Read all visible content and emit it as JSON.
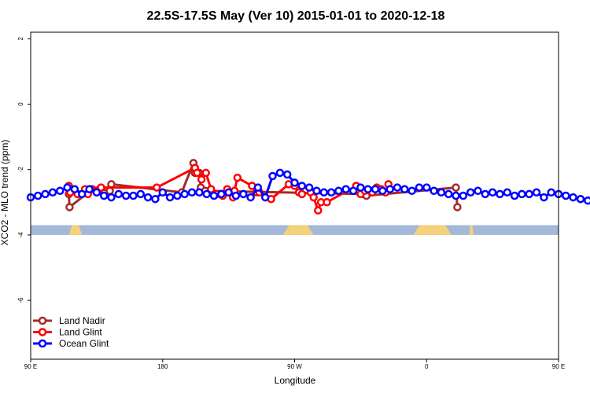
{
  "chart_data": {
    "type": "line",
    "title": "22.5S-17.5S May (Ver 10)   2015-01-01 to 2020-12-18",
    "xlabel": "Longitude",
    "ylabel": "XCO2 - MLO trend (ppm)",
    "xlim": [
      90,
      450
    ],
    "ylim": [
      -7.8,
      2.2
    ],
    "x_ticks": [
      {
        "value": 90,
        "label": "90 E"
      },
      {
        "value": 180,
        "label": "180"
      },
      {
        "value": 270,
        "label": "90 W"
      },
      {
        "value": 360,
        "label": "0"
      },
      {
        "value": 450,
        "label": "90 E"
      },
      {
        "value": 540,
        "label": "180"
      }
    ],
    "y_ticks": [
      {
        "value": 2,
        "label": "2"
      },
      {
        "value": 0,
        "label": "0"
      },
      {
        "value": -2,
        "label": "-2"
      },
      {
        "value": -4,
        "label": "-4"
      },
      {
        "value": -6,
        "label": "-6"
      }
    ],
    "legend_position": "bottom-left",
    "land_band": {
      "ymin": -4.0,
      "ymax": -3.7,
      "ocean_color": "#a4b9d9",
      "land_color": "#f4d27a",
      "land_ranges": [
        [
          116,
          125
        ],
        [
          262,
          283
        ],
        [
          351,
          377
        ],
        [
          389,
          392
        ],
        [
          474,
          492
        ]
      ]
    },
    "series": [
      {
        "name": "Land Nadir",
        "color": "#a52a2a",
        "x": [
          116,
          116.5,
          132,
          137,
          144,
          145,
          193,
          201,
          201.5,
          202,
          205,
          206,
          209,
          317,
          319,
          380,
          381
        ],
        "y": [
          -2.75,
          -3.15,
          -2.6,
          -2.6,
          -2.65,
          -2.45,
          -2.7,
          -1.8,
          -2.0,
          -2.1,
          -2.1,
          -2.55,
          -2.65,
          -2.75,
          -2.8,
          -2.55,
          -3.15
        ]
      },
      {
        "name": "Land Glint",
        "color": "#ff0000",
        "x": [
          116,
          117,
          122,
          127,
          129,
          131,
          135,
          138,
          176,
          202,
          203.5,
          206.5,
          209.5,
          213,
          217,
          221,
          224,
          226,
          228,
          229,
          231,
          241,
          244,
          246,
          254,
          266,
          270,
          273,
          275,
          281,
          283,
          286,
          288,
          292,
          312,
          315,
          318,
          323,
          326,
          329,
          332,
          334
        ],
        "y": [
          -2.5,
          -2.7,
          -2.75,
          -2.6,
          -2.75,
          -2.6,
          -2.65,
          -2.55,
          -2.55,
          -1.95,
          -2.1,
          -2.3,
          -2.1,
          -2.6,
          -2.75,
          -2.8,
          -2.6,
          -2.7,
          -2.85,
          -2.65,
          -2.25,
          -2.5,
          -2.7,
          -2.7,
          -2.9,
          -2.45,
          -2.5,
          -2.7,
          -2.75,
          -2.7,
          -2.85,
          -3.25,
          -3.0,
          -3.0,
          -2.5,
          -2.75,
          -2.65,
          -2.7,
          -2.55,
          -2.6,
          -2.7,
          -2.45
        ]
      },
      {
        "name": "Ocean Glint",
        "color": "#0000ff",
        "x": [
          90,
          95,
          100,
          105,
          110,
          115,
          120,
          125,
          130,
          135,
          140,
          145,
          150,
          155,
          160,
          165,
          170,
          175,
          180,
          185,
          190,
          195,
          200,
          205,
          210,
          215,
          220,
          225,
          230,
          235,
          240,
          245,
          250,
          255,
          260,
          265,
          270,
          275,
          280,
          285,
          290,
          295,
          300,
          305,
          310,
          315,
          320,
          325,
          330,
          335,
          340,
          345,
          350,
          355,
          360,
          365,
          370,
          375,
          380,
          385,
          390,
          395,
          400,
          405,
          410,
          415,
          420,
          425,
          430,
          435,
          440,
          445,
          450,
          455,
          460,
          465,
          470,
          475,
          480,
          485,
          490,
          495
        ],
        "y": [
          -2.85,
          -2.8,
          -2.75,
          -2.7,
          -2.65,
          -2.55,
          -2.6,
          -2.75,
          -2.6,
          -2.7,
          -2.8,
          -2.85,
          -2.75,
          -2.8,
          -2.8,
          -2.75,
          -2.85,
          -2.9,
          -2.7,
          -2.85,
          -2.8,
          -2.75,
          -2.7,
          -2.7,
          -2.75,
          -2.8,
          -2.75,
          -2.7,
          -2.8,
          -2.75,
          -2.85,
          -2.55,
          -2.85,
          -2.2,
          -2.1,
          -2.15,
          -2.4,
          -2.5,
          -2.55,
          -2.65,
          -2.7,
          -2.7,
          -2.65,
          -2.6,
          -2.65,
          -2.55,
          -2.6,
          -2.6,
          -2.65,
          -2.6,
          -2.55,
          -2.6,
          -2.65,
          -2.55,
          -2.55,
          -2.65,
          -2.7,
          -2.75,
          -2.8,
          -2.8,
          -2.7,
          -2.65,
          -2.75,
          -2.7,
          -2.75,
          -2.7,
          -2.8,
          -2.75,
          -2.75,
          -2.7,
          -2.85,
          -2.7,
          -2.75,
          -2.8,
          -2.85,
          -2.9,
          -2.95,
          -2.85,
          -2.85,
          -2.8,
          -2.85,
          -2.9
        ]
      }
    ]
  }
}
